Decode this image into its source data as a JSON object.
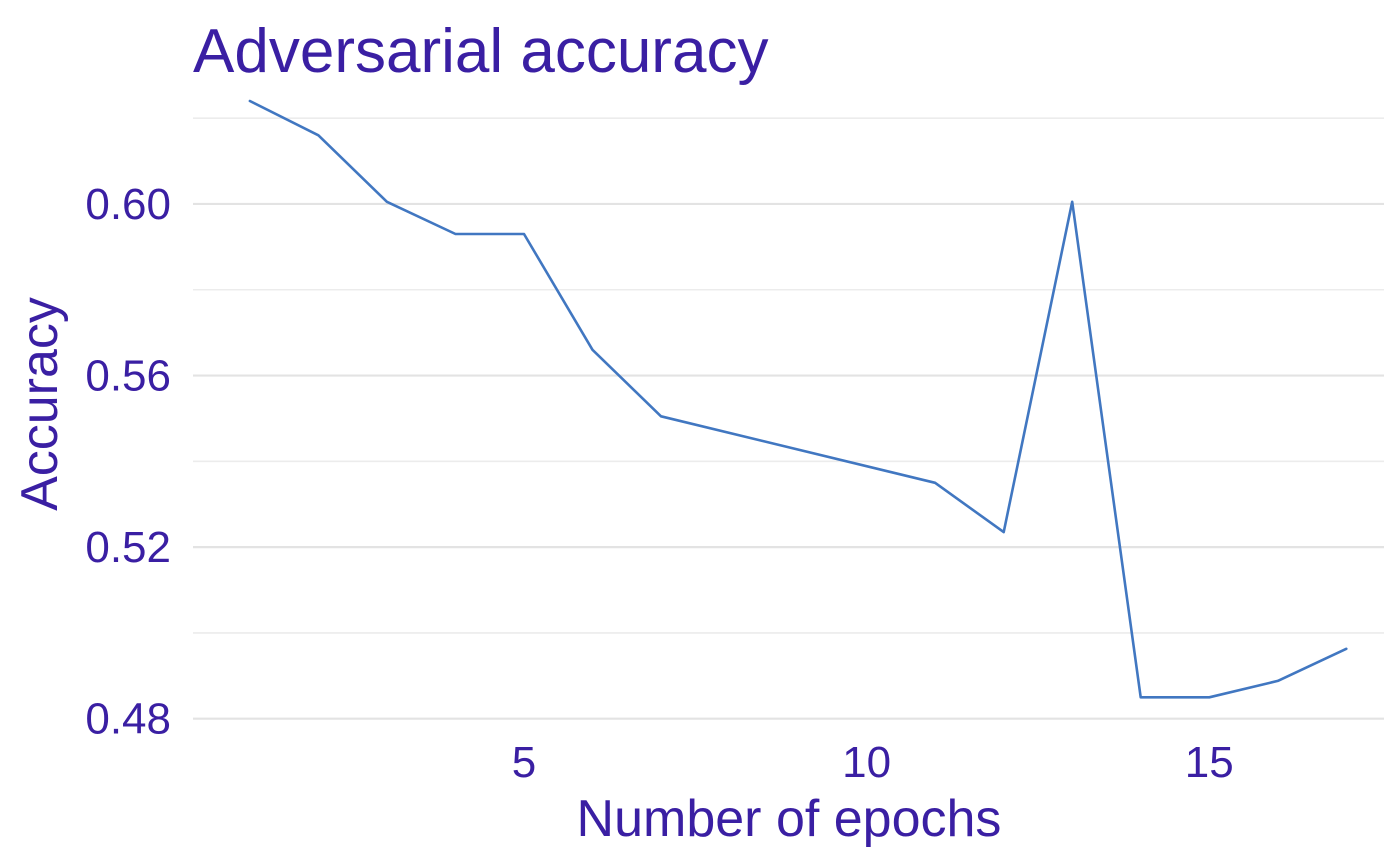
{
  "chart_data": {
    "type": "line",
    "title": "Adversarial accuracy",
    "xlabel": "Number of epochs",
    "ylabel": "Accuracy",
    "x": [
      1,
      2,
      3,
      4,
      5,
      6,
      7,
      11,
      12,
      13,
      14,
      15,
      16,
      17
    ],
    "series": [
      {
        "values": [
          0.624,
          0.616,
          0.6005,
          0.593,
          0.593,
          0.566,
          0.5505,
          0.535,
          0.5235,
          0.6005,
          0.485,
          0.485,
          0.4888,
          0.4963
        ]
      }
    ],
    "xlim": [
      0.17,
      17.55
    ],
    "ylim": [
      0.4755,
      0.6275
    ],
    "xticks": [
      5,
      10,
      15
    ],
    "xtick_labels": [
      "5",
      "10",
      "15"
    ],
    "yticks": [
      0.48,
      0.52,
      0.56,
      0.6
    ],
    "ytick_labels": [
      "0.48",
      "0.52",
      "0.56",
      "0.60"
    ],
    "y_minor_ticks": [
      0.5,
      0.54,
      0.58,
      0.62
    ],
    "grid": true,
    "legend": "none",
    "colors": {
      "line": "#4177c1",
      "text": "#3a1fa3",
      "grid": "#e3e3e3"
    }
  }
}
